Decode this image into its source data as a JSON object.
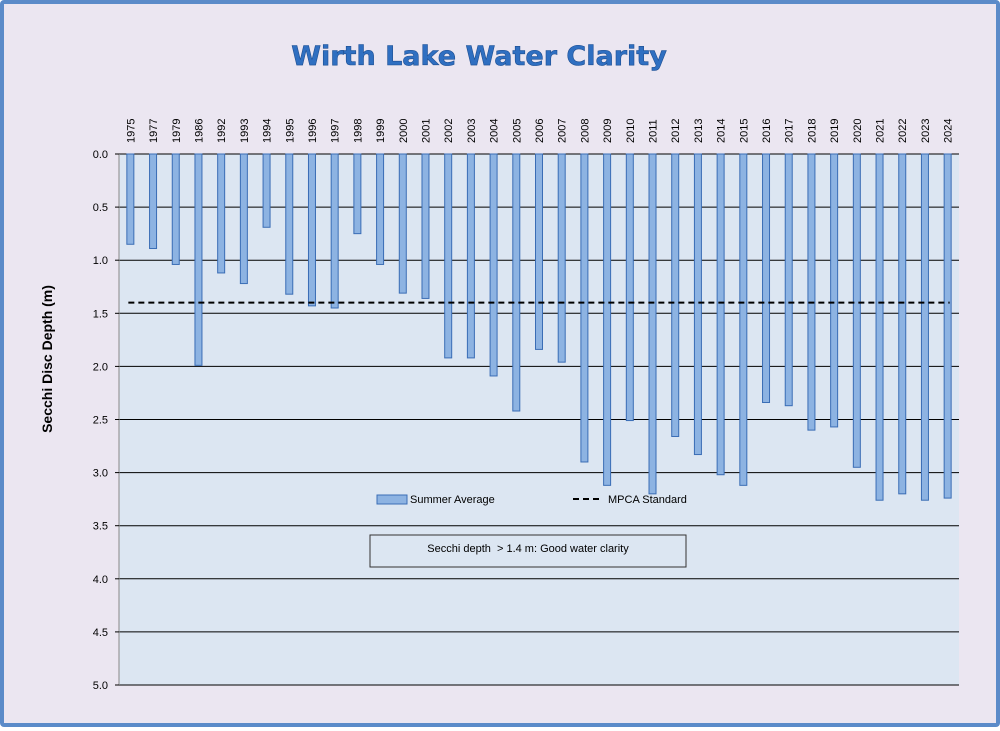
{
  "chart_data": {
    "type": "bar",
    "title": "Wirth Lake Water Clarity",
    "ylabel": "Secchi Disc Depth (m)",
    "xlabel": "",
    "y_inverted": true,
    "ylim": [
      0,
      5
    ],
    "yticks": [
      "0.0",
      "0.5",
      "1.0",
      "1.5",
      "2.0",
      "2.5",
      "3.0",
      "3.5",
      "4.0",
      "4.5",
      "5.0"
    ],
    "x_labels_position": "top",
    "grid": "horizontal",
    "categories": [
      "1975",
      "1977",
      "1979",
      "1986",
      "1992",
      "1993",
      "1994",
      "1995",
      "1996",
      "1997",
      "1998",
      "1999",
      "2000",
      "2001",
      "2002",
      "2003",
      "2004",
      "2005",
      "2006",
      "2007",
      "2008",
      "2009",
      "2010",
      "2011",
      "2012",
      "2013",
      "2014",
      "2015",
      "2016",
      "2017",
      "2018",
      "2019",
      "2020",
      "2021",
      "2022",
      "2023",
      "2024"
    ],
    "series": [
      {
        "name": "Summer Average",
        "type": "bar",
        "color": "#8db3e2",
        "values": [
          0.85,
          0.89,
          1.04,
          1.99,
          1.12,
          1.22,
          0.69,
          1.32,
          1.43,
          1.45,
          0.75,
          1.04,
          1.31,
          1.36,
          1.92,
          1.92,
          2.09,
          2.42,
          1.84,
          1.96,
          2.9,
          3.12,
          2.51,
          3.2,
          2.66,
          2.83,
          3.02,
          3.12,
          2.34,
          2.37,
          2.6,
          2.57,
          2.95,
          3.26,
          3.2,
          3.26,
          3.24
        ]
      },
      {
        "name": "MPCA Standard",
        "type": "line",
        "style": "dashed",
        "color": "#000000",
        "value": 1.4
      }
    ],
    "legend_position": "inside-bottom-center",
    "annotation": "Secchi depth  > 1.4 m: Good water clarity"
  },
  "colors": {
    "frame_border": "#5b8bc9",
    "frame_bg": "#ebe6f1",
    "plot_bg": "#dce6f2",
    "bar_fill": "#8db3e2",
    "bar_stroke": "#3a6db5"
  }
}
